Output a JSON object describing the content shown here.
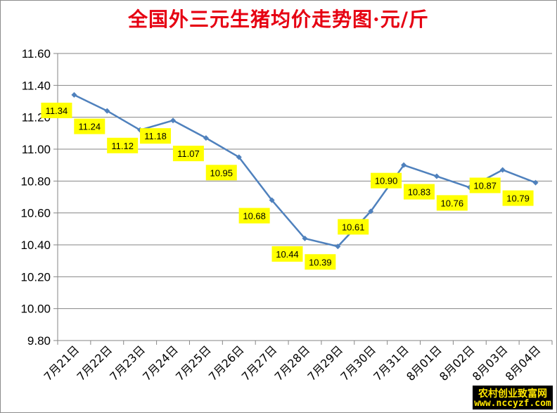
{
  "chart_data": {
    "type": "line",
    "title": "全国外三元生猪均价走势图·元/斤",
    "categories": [
      "7月21日",
      "7月22日",
      "7月23日",
      "7月24日",
      "7月25日",
      "7月26日",
      "7月27日",
      "7月28日",
      "7月29日",
      "7月30日",
      "7月31日",
      "8月01日",
      "8月02日",
      "8月03日",
      "8月04日"
    ],
    "values": [
      11.34,
      11.24,
      11.12,
      11.18,
      11.07,
      10.95,
      10.68,
      10.44,
      10.39,
      10.61,
      10.9,
      10.83,
      10.76,
      10.87,
      10.79
    ],
    "data_labels": [
      "11.34",
      "11.24",
      "11.12",
      "11.18",
      "11.07",
      "10.95",
      "10.68",
      "10.44",
      "10.39",
      "10.61",
      "10.90",
      "10.83",
      "10.76",
      "10.87",
      "10.79"
    ],
    "ylim": [
      9.8,
      11.6
    ],
    "yticks": [
      "9.80",
      "10.00",
      "10.20",
      "10.40",
      "10.60",
      "10.80",
      "11.00",
      "11.20",
      "11.40",
      "11.60"
    ],
    "grid": true,
    "legend": "none",
    "series_color": "#4f81bd",
    "label_bg_color": "#ffff00"
  },
  "watermark": {
    "line1": "农村创业致富网",
    "line2": "www.nccyzf.com"
  }
}
